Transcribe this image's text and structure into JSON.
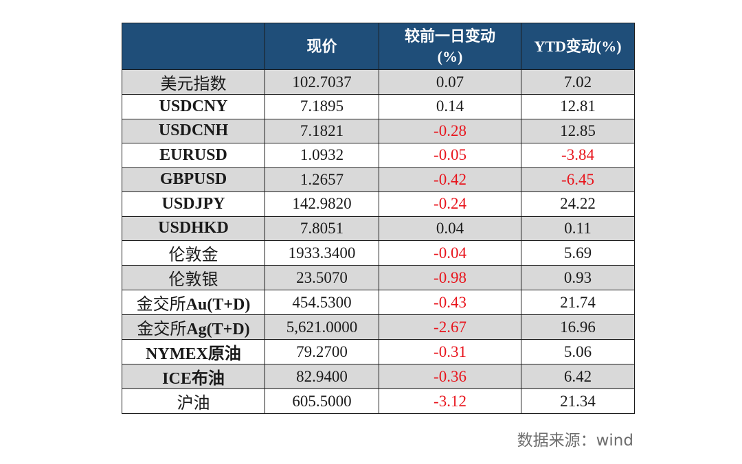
{
  "chart_data": {
    "type": "table",
    "columns": [
      "",
      "现价",
      "较前一日变动(%)",
      "YTD变动(%)"
    ],
    "header": {
      "col0": "",
      "col1": "现价",
      "col2_line1": "较前一日变动",
      "col2_line2": "(%)",
      "col3": "YTD变动(%)"
    },
    "rows": [
      {
        "name": "美元指数",
        "price": "102.7037",
        "day_change": "0.07",
        "ytd_change": "7.02"
      },
      {
        "name": "USDCNY",
        "price": "7.1895",
        "day_change": "0.14",
        "ytd_change": "12.81"
      },
      {
        "name": "USDCNH",
        "price": "7.1821",
        "day_change": "-0.28",
        "ytd_change": "12.85"
      },
      {
        "name": "EURUSD",
        "price": "1.0932",
        "day_change": "-0.05",
        "ytd_change": "-3.84"
      },
      {
        "name": "GBPUSD",
        "price": "1.2657",
        "day_change": "-0.42",
        "ytd_change": "-6.45"
      },
      {
        "name": "USDJPY",
        "price": "142.9820",
        "day_change": "-0.24",
        "ytd_change": "24.22"
      },
      {
        "name": "USDHKD",
        "price": "7.8051",
        "day_change": "0.04",
        "ytd_change": "0.11"
      },
      {
        "name": "伦敦金",
        "price": "1933.3400",
        "day_change": "-0.04",
        "ytd_change": "5.69"
      },
      {
        "name": "伦敦银",
        "price": "23.5070",
        "day_change": "-0.98",
        "ytd_change": "0.93"
      },
      {
        "name": "金交所Au(T+D)",
        "price": "454.5300",
        "day_change": "-0.43",
        "ytd_change": "21.74"
      },
      {
        "name": "金交所Ag(T+D)",
        "price": "5,621.0000",
        "day_change": "-2.67",
        "ytd_change": "16.96"
      },
      {
        "name": "NYMEX原油",
        "price": "79.2700",
        "day_change": "-0.31",
        "ytd_change": "5.06"
      },
      {
        "name": "ICE布油",
        "price": "82.9400",
        "day_change": "-0.36",
        "ytd_change": "6.42"
      },
      {
        "name": "沪油",
        "price": "605.5000",
        "day_change": "-3.12",
        "ytd_change": "21.34"
      }
    ]
  },
  "source_label": "数据来源：wind",
  "colors": {
    "header_bg": "#1f4e79",
    "header_text": "#ffffff",
    "row_shade": "#d9d9d9",
    "negative": "#e8141c",
    "text": "#1a1a1a",
    "source_text": "#6d6d6d"
  }
}
